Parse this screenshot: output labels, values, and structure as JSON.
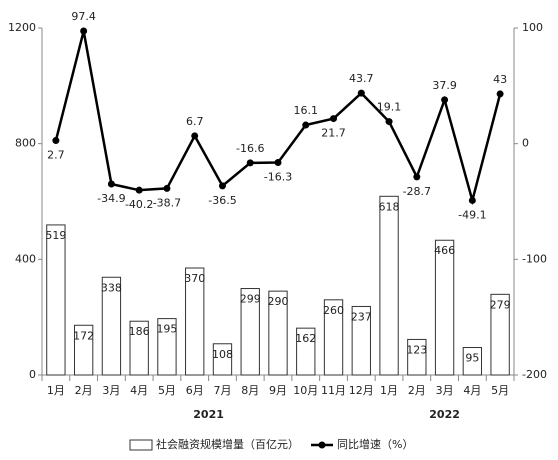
{
  "chart_data": {
    "type": "bar",
    "categories": [
      "1月",
      "2月",
      "3月",
      "4月",
      "5月",
      "6月",
      "7月",
      "8月",
      "9月",
      "10月",
      "11月",
      "12月",
      "1月",
      "2月",
      "3月",
      "4月",
      "5月"
    ],
    "x_groups": [
      "2021",
      "2022"
    ],
    "series": [
      {
        "name": "社会融资规模增量（百亿元）",
        "type": "bar",
        "color": "#ffffff",
        "values": [
          519,
          172,
          338,
          186,
          195,
          370,
          108,
          299,
          290,
          162,
          260,
          237,
          618,
          123,
          466,
          95,
          279
        ]
      },
      {
        "name": "同比增速（%）",
        "type": "line",
        "axis": "y2",
        "color": "#000000",
        "values": [
          2.7,
          97.4,
          -34.9,
          -40.2,
          -38.7,
          6.7,
          -36.5,
          -16.6,
          -16.3,
          16.1,
          21.7,
          43.7,
          19.1,
          -28.7,
          37.9,
          -49.1,
          43
        ]
      }
    ],
    "ylim": [
      0,
      1200
    ],
    "yticks": [
      0,
      400,
      800,
      1200
    ],
    "y2lim": [
      -200,
      100
    ],
    "y2ticks": [
      -200,
      -100,
      0,
      100
    ]
  }
}
